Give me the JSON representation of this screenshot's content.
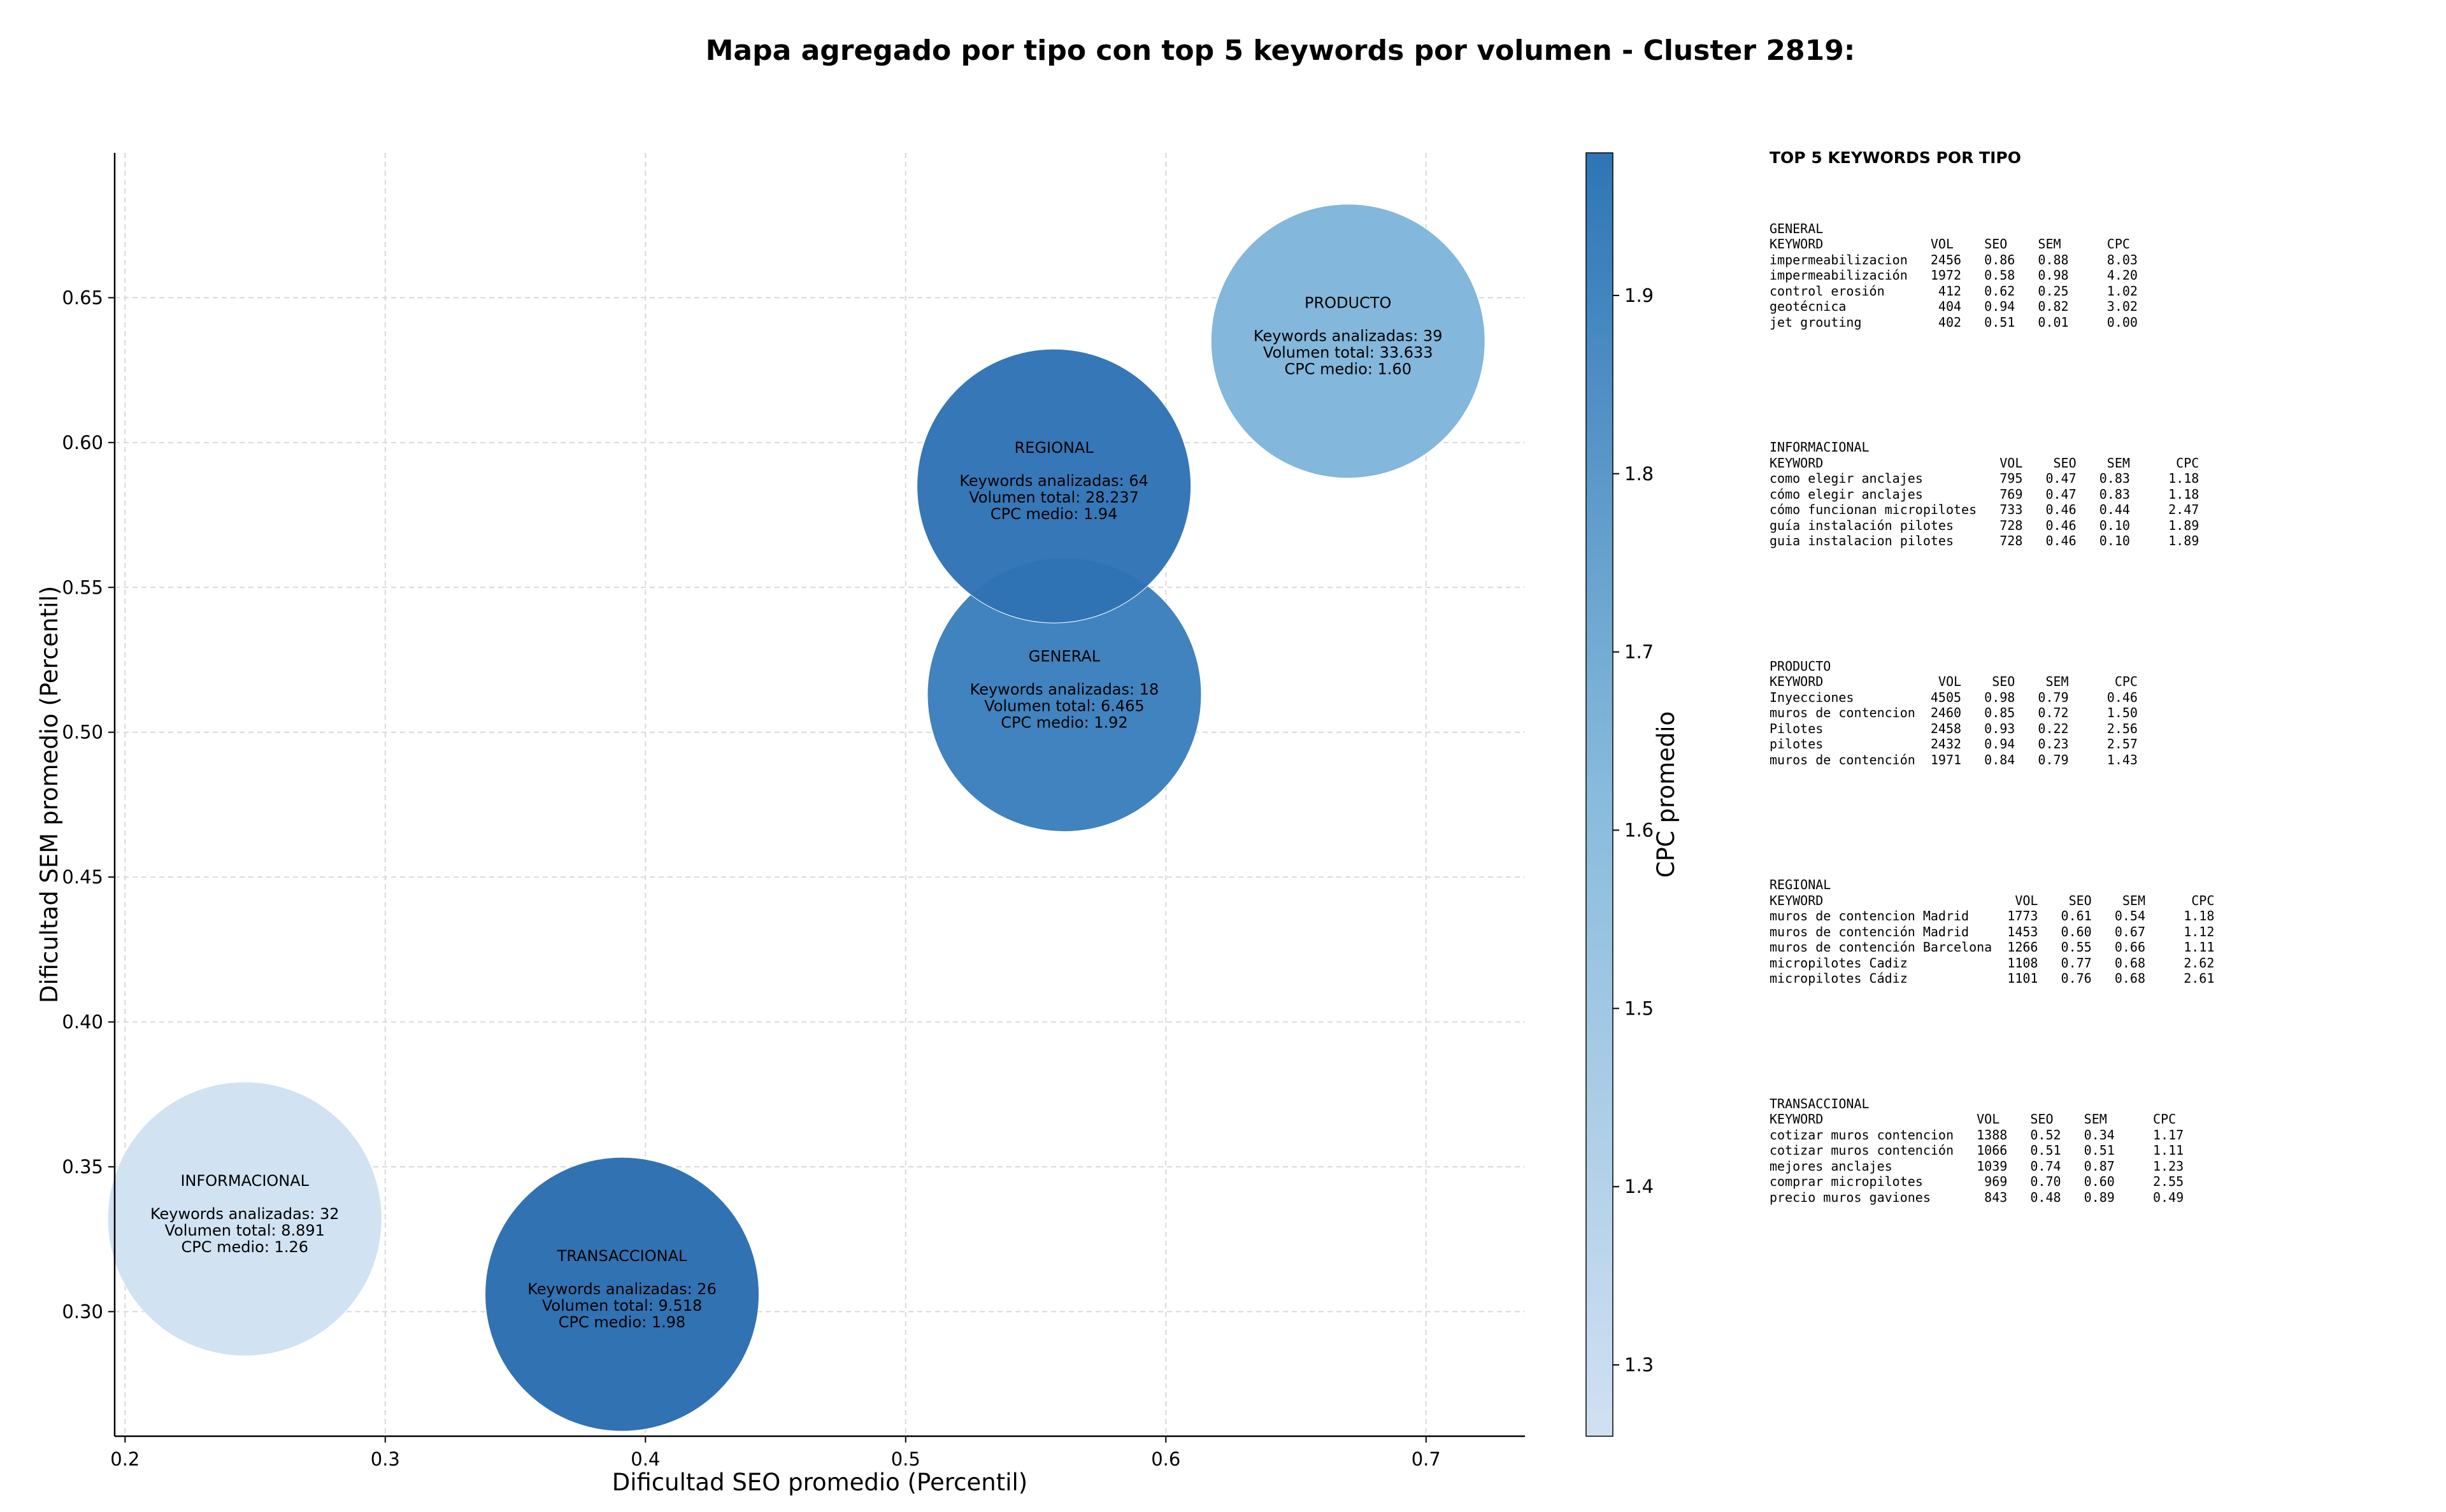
{
  "title": "Mapa agregado por tipo con top 5 keywords por volumen - Cluster 2819:",
  "chart_data": {
    "type": "scatter",
    "title": "Mapa agregado por tipo con top 5 keywords por volumen - Cluster 2819:",
    "xlabel": "Dificultad SEO promedio (Percentil)",
    "ylabel": "Dificultad SEM promedio (Percentil)",
    "xlim": [
      0.196,
      0.738
    ],
    "ylim": [
      0.257,
      0.7
    ],
    "xticks": [
      "0.2",
      "0.3",
      "0.4",
      "0.5",
      "0.6",
      "0.7"
    ],
    "yticks": [
      "0.30",
      "0.35",
      "0.40",
      "0.45",
      "0.50",
      "0.55",
      "0.60",
      "0.65"
    ],
    "grid": true,
    "colorbar": {
      "label": "CPC promedio",
      "range": [
        1.26,
        1.98
      ],
      "ticks": [
        "1.3",
        "1.4",
        "1.5",
        "1.6",
        "1.7",
        "1.8",
        "1.9"
      ],
      "color_low": "#d0e1f2",
      "color_high": "#2e75b6"
    },
    "bubbles": [
      {
        "name": "INFORMACIONAL",
        "x": 0.246,
        "y": 0.332,
        "cpc": 1.26,
        "keywords_line": "Keywords analizadas: 32",
        "volume_line": "Volumen total: 8.891",
        "cpc_line": "CPC medio: 1.26",
        "color": "#d0e1f2"
      },
      {
        "name": "TRANSACCIONAL",
        "x": 0.391,
        "y": 0.306,
        "cpc": 1.98,
        "keywords_line": "Keywords analizadas: 26",
        "volume_line": "Volumen total: 9.518",
        "cpc_line": "CPC medio: 1.98",
        "color": "#2a6db0"
      },
      {
        "name": "GENERAL",
        "x": 0.561,
        "y": 0.513,
        "cpc": 1.92,
        "keywords_line": "Keywords analizadas: 18",
        "volume_line": "Volumen total: 6.465",
        "cpc_line": "CPC medio: 1.92",
        "color": "#3a7fbc"
      },
      {
        "name": "REGIONAL",
        "x": 0.557,
        "y": 0.585,
        "cpc": 1.94,
        "keywords_line": "Keywords analizadas: 64",
        "volume_line": "Volumen total: 28.237",
        "cpc_line": "CPC medio: 1.94",
        "color": "#2f73b5"
      },
      {
        "name": "PRODUCTO",
        "x": 0.67,
        "y": 0.635,
        "cpc": 1.6,
        "keywords_line": "Keywords analizadas: 39",
        "volume_line": "Volumen total: 33.633",
        "cpc_line": "CPC medio: 1.60",
        "color": "#7fb5da"
      }
    ]
  },
  "side_panel": {
    "title": "TOP 5 KEYWORDS POR TIPO",
    "blocks": [
      {
        "name": "GENERAL",
        "lines": [
          "GENERAL",
          "KEYWORD              VOL    SEO    SEM      CPC",
          "impermeabilizacion   2456   0.86   0.88     8.03",
          "impermeabilización   1972   0.58   0.98     4.20",
          "control erosión       412   0.62   0.25     1.02",
          "geotécnica            404   0.94   0.82     3.02",
          "jet grouting          402   0.51   0.01     0.00"
        ]
      },
      {
        "name": "INFORMACIONAL",
        "lines": [
          "INFORMACIONAL",
          "KEYWORD                       VOL    SEO    SEM      CPC",
          "como elegir anclajes          795   0.47   0.83     1.18",
          "cómo elegir anclajes          769   0.47   0.83     1.18",
          "cómo funcionan micropilotes   733   0.46   0.44     2.47",
          "guía instalación pilotes      728   0.46   0.10     1.89",
          "guia instalacion pilotes      728   0.46   0.10     1.89"
        ]
      },
      {
        "name": "PRODUCTO",
        "lines": [
          "PRODUCTO",
          "KEYWORD               VOL    SEO    SEM      CPC",
          "Inyecciones          4505   0.98   0.79     0.46",
          "muros de contencion  2460   0.85   0.72     1.50",
          "Pilotes              2458   0.93   0.22     2.56",
          "pilotes              2432   0.94   0.23     2.57",
          "muros de contención  1971   0.84   0.79     1.43"
        ]
      },
      {
        "name": "REGIONAL",
        "lines": [
          "REGIONAL",
          "KEYWORD                         VOL    SEO    SEM      CPC",
          "muros de contencion Madrid     1773   0.61   0.54     1.18",
          "muros de contención Madrid     1453   0.60   0.67     1.12",
          "muros de contención Barcelona  1266   0.55   0.66     1.11",
          "micropilotes Cadiz             1108   0.77   0.68     2.62",
          "micropilotes Cádiz             1101   0.76   0.68     2.61"
        ]
      },
      {
        "name": "TRANSACCIONAL",
        "lines": [
          "TRANSACCIONAL",
          "KEYWORD                    VOL    SEO    SEM      CPC",
          "cotizar muros contencion   1388   0.52   0.34     1.17",
          "cotizar muros contención   1066   0.51   0.51     1.11",
          "mejores anclajes           1039   0.74   0.87     1.23",
          "comprar micropilotes        969   0.70   0.60     2.55",
          "precio muros gaviones       843   0.48   0.89     0.49"
        ]
      }
    ]
  }
}
